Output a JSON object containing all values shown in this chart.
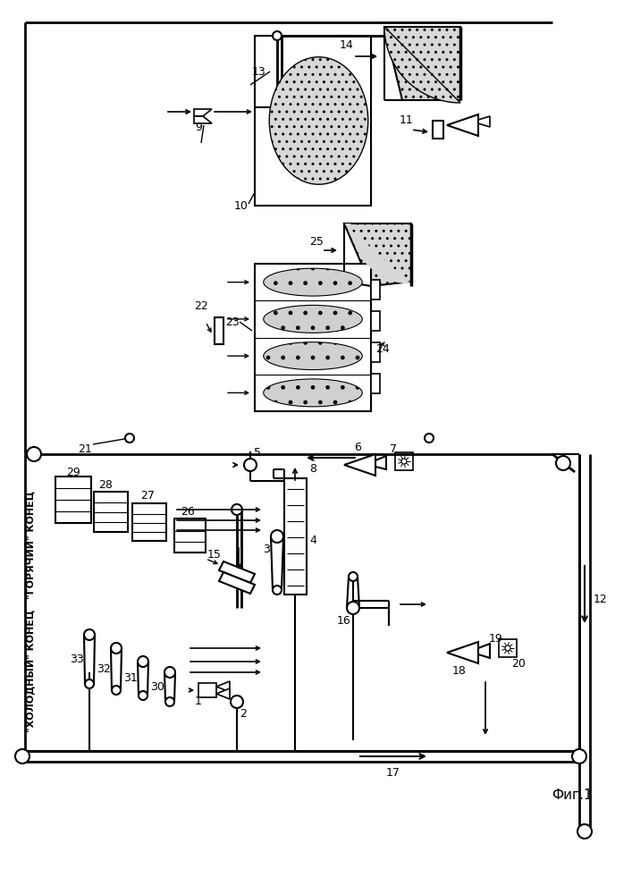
{
  "fig_label": "Фиг.1",
  "background": "#ffffff",
  "line_color": "#000000",
  "fig_width": 7.07,
  "fig_height": 10.0,
  "dpi": 100,
  "labels": {
    "hot_end": "\"ГОРЯЧИЙ\" КОНЕЦ",
    "cold_end": "\"ХОЛОДНЫЙ\" КОНЕЦ",
    "fig": "Фиг.1"
  }
}
